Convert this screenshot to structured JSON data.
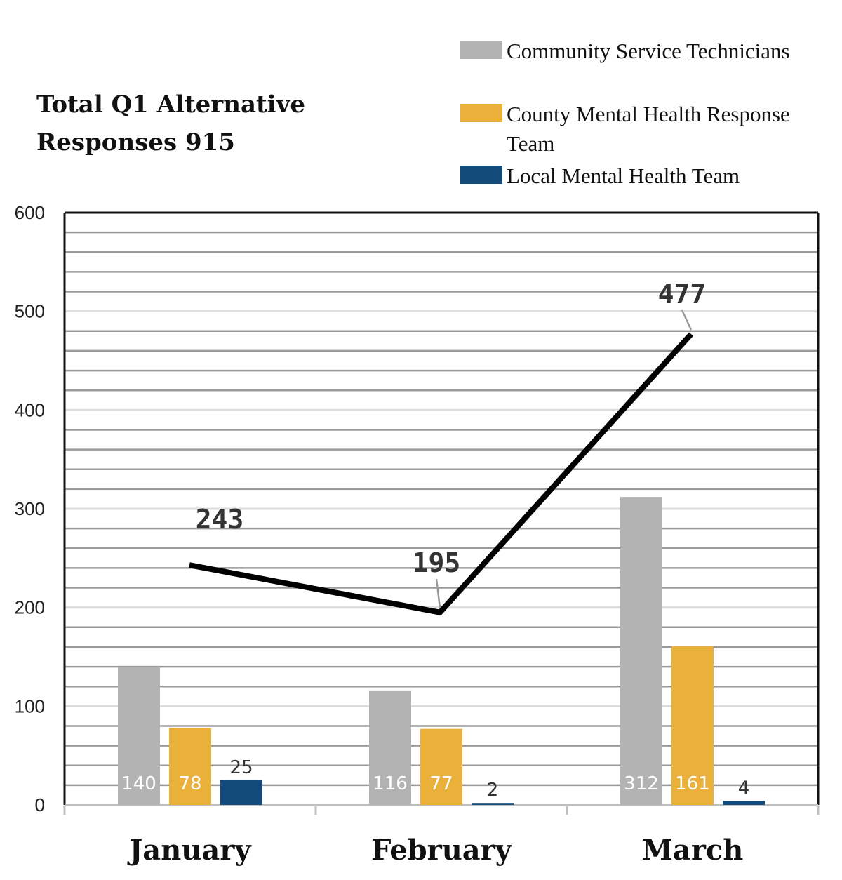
{
  "chart_data": {
    "type": "bar",
    "title_lines": [
      "Total Q1 Alternative",
      "Responses 915"
    ],
    "categories": [
      "January",
      "February",
      "March"
    ],
    "series": [
      {
        "name": "Community Service Technicians",
        "color": "#b3b3b3",
        "values": [
          140,
          116,
          312
        ],
        "labels": [
          "140",
          "116",
          "312"
        ]
      },
      {
        "name": "County Mental Health Response Team",
        "color": "#ebb03a",
        "values": [
          78,
          77,
          161
        ],
        "labels": [
          "78",
          "77",
          "161"
        ]
      },
      {
        "name": "Local Mental Health Team",
        "color": "#124a7a",
        "values": [
          25,
          2,
          4
        ],
        "labels": [
          "25",
          "2",
          "4"
        ]
      }
    ],
    "legend_lines": [
      [
        "Community Service Technicians"
      ],
      [
        "County Mental Health Response",
        "Team"
      ],
      [
        "Local Mental Health Team"
      ]
    ],
    "total_line": {
      "name": "Total",
      "color": "#000000",
      "values": [
        243,
        195,
        477
      ],
      "labels": [
        "243",
        "195",
        "477"
      ]
    },
    "ylim": [
      0,
      600
    ],
    "yticks": [
      0,
      100,
      200,
      300,
      400,
      500,
      600
    ],
    "ytick_labels": [
      "0",
      "100",
      "200",
      "300",
      "400",
      "500",
      "600"
    ],
    "xlabel": "",
    "ylabel": "",
    "legend_position": "top-right",
    "grid": true
  }
}
